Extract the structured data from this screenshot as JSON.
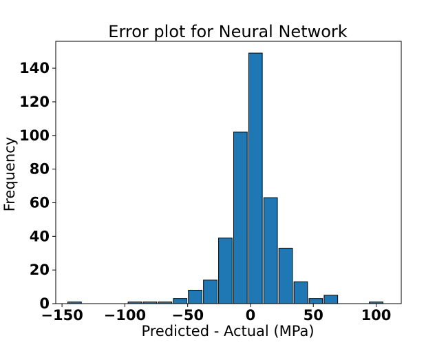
{
  "chart_data": {
    "type": "bar",
    "title": "Error plot for Neural Network",
    "xlabel": "Predicted - Actual (MPa)",
    "ylabel": "Frequency",
    "xlim": [
      -155,
      120
    ],
    "ylim": [
      0,
      156
    ],
    "xticks": [
      -150,
      -100,
      -50,
      0,
      50,
      100
    ],
    "xtick_labels": [
      "−150",
      "−100",
      "−50",
      "0",
      "50",
      "100"
    ],
    "yticks": [
      0,
      20,
      40,
      60,
      80,
      100,
      120,
      140
    ],
    "yticks_labels": [
      "0",
      "20",
      "40",
      "60",
      "80",
      "100",
      "120",
      "140"
    ],
    "bin_edges": [
      -146,
      -134,
      -122,
      -110,
      -98,
      -86,
      -74,
      -62,
      -50,
      -38,
      -26,
      -14,
      -2,
      10,
      22,
      34,
      46,
      58,
      70,
      82,
      94,
      106
    ],
    "values": [
      1,
      0,
      0,
      0,
      1,
      1,
      1,
      3,
      8,
      14,
      39,
      102,
      149,
      63,
      33,
      13,
      3,
      5,
      0,
      0,
      1
    ],
    "bar_color": "#1f77b4",
    "edge_color": "#000000",
    "grid": false
  }
}
